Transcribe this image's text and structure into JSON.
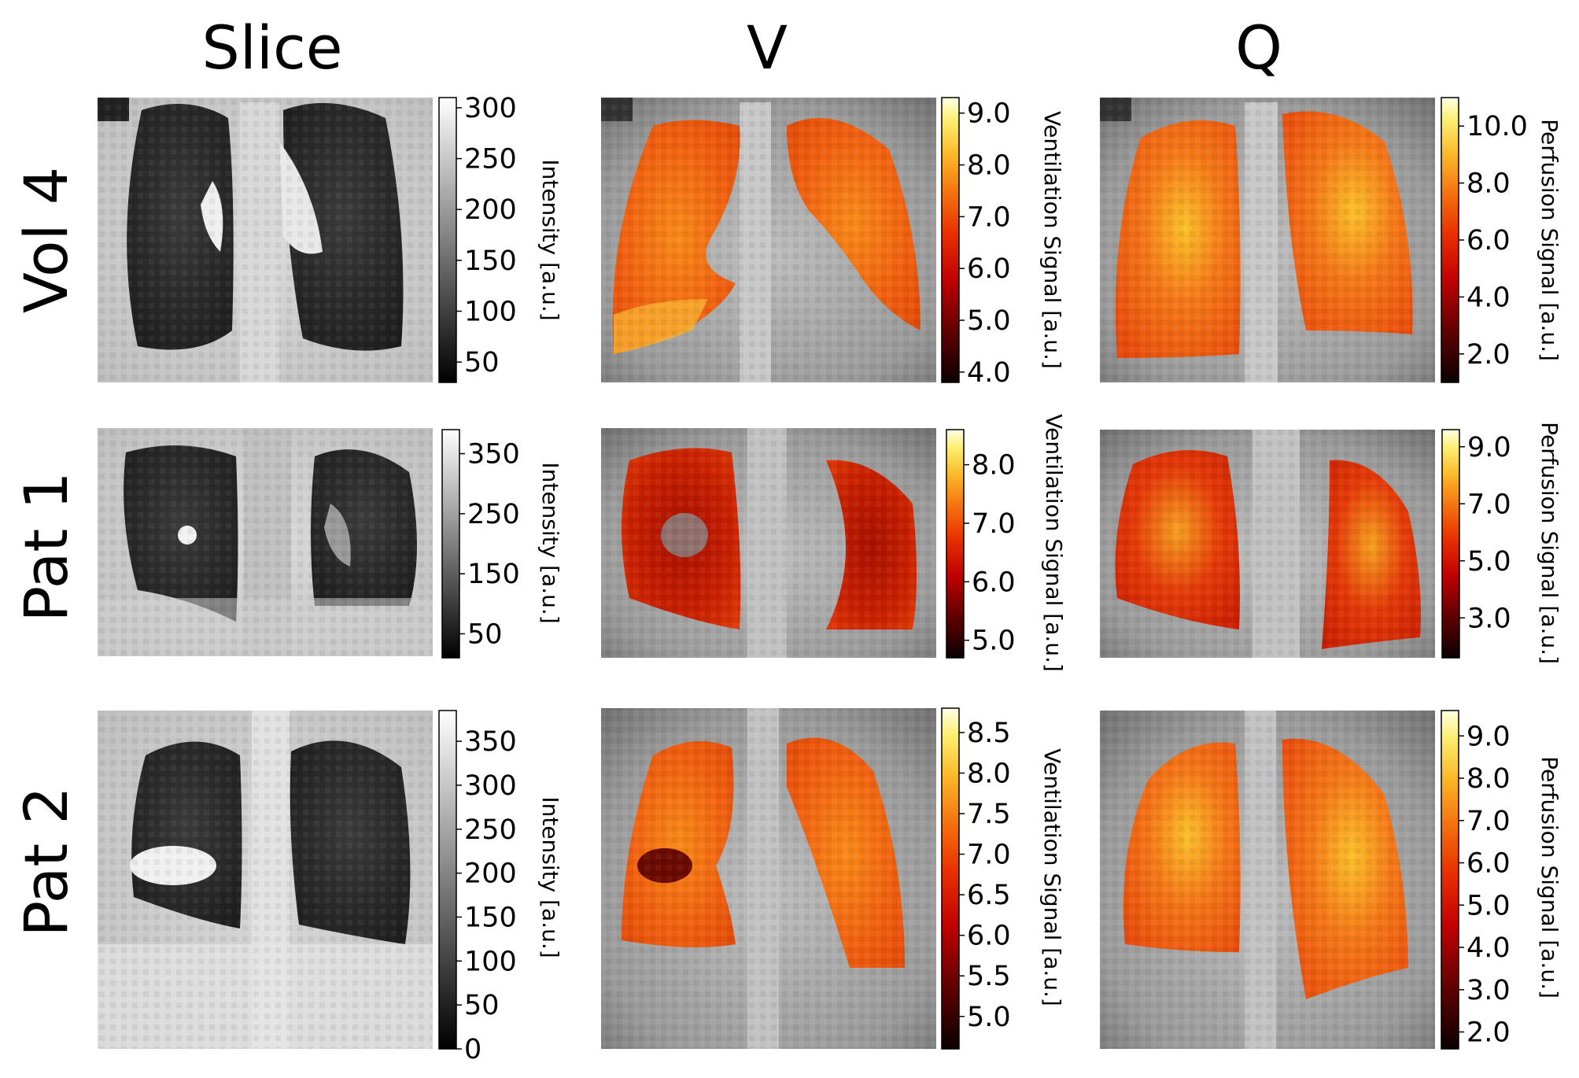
{
  "columns": [
    {
      "title": "Slice"
    },
    {
      "title": "V"
    },
    {
      "title": "Q"
    }
  ],
  "rows": [
    {
      "label": "Vol 4"
    },
    {
      "label": "Pat 1"
    },
    {
      "label": "Pat 2"
    }
  ],
  "panels": [
    [
      {
        "kind": "gray",
        "colorbar": {
          "label": "Intensity [a.u.]",
          "ticks": [
            "300",
            "250",
            "200",
            "150",
            "100",
            "50"
          ],
          "range": [
            30,
            310
          ]
        }
      },
      {
        "kind": "vent",
        "tone": "orange",
        "colorbar": {
          "label": "Ventilation Signal [a.u.]",
          "ticks": [
            "9.0",
            "8.0",
            "7.0",
            "6.0",
            "5.0",
            "4.0"
          ],
          "range": [
            3.8,
            9.3
          ]
        }
      },
      {
        "kind": "perf",
        "tone": "orange",
        "colorbar": {
          "label": "Perfusion Signal [a.u.]",
          "ticks": [
            "10.0",
            "8.0",
            "6.0",
            "4.0",
            "2.0"
          ],
          "range": [
            1.0,
            11.0
          ]
        }
      }
    ],
    [
      {
        "kind": "gray",
        "colorbar": {
          "label": "Intensity [a.u.]",
          "ticks": [
            "350",
            "250",
            "150",
            "50"
          ],
          "range": [
            10,
            390
          ]
        }
      },
      {
        "kind": "vent",
        "tone": "dark",
        "colorbar": {
          "label": "Ventilation Signal [a.u.]",
          "ticks": [
            "8.0",
            "7.0",
            "6.0",
            "5.0"
          ],
          "range": [
            4.7,
            8.6
          ]
        }
      },
      {
        "kind": "perf",
        "tone": "red",
        "colorbar": {
          "label": "Perfusion Signal [a.u.]",
          "ticks": [
            "9.0",
            "7.0",
            "5.0",
            "3.0"
          ],
          "range": [
            1.6,
            9.6
          ]
        }
      }
    ],
    [
      {
        "kind": "gray",
        "colorbar": {
          "label": "Intensity [a.u.]",
          "ticks": [
            "350",
            "300",
            "250",
            "200",
            "150",
            "100",
            "50",
            "0"
          ],
          "range": [
            0,
            385
          ]
        }
      },
      {
        "kind": "vent",
        "tone": "orange",
        "colorbar": {
          "label": "Ventilation Signal [a.u.]",
          "ticks": [
            "8.5",
            "8.0",
            "7.5",
            "7.0",
            "6.5",
            "6.0",
            "5.5",
            "5.0"
          ],
          "range": [
            4.6,
            8.8
          ]
        }
      },
      {
        "kind": "perf",
        "tone": "orange",
        "colorbar": {
          "label": "Perfusion Signal [a.u.]",
          "ticks": [
            "9.0",
            "8.0",
            "7.0",
            "6.0",
            "5.0",
            "4.0",
            "3.0",
            "2.0"
          ],
          "range": [
            1.6,
            9.6
          ]
        }
      }
    ]
  ],
  "colors": {
    "hot": [
      "#0a0000",
      "#5e0000",
      "#b00000",
      "#e02000",
      "#f05000",
      "#f88c10",
      "#fcc830",
      "#fff080",
      "#ffffe0"
    ],
    "gray": [
      "#000000",
      "#ffffff"
    ]
  }
}
